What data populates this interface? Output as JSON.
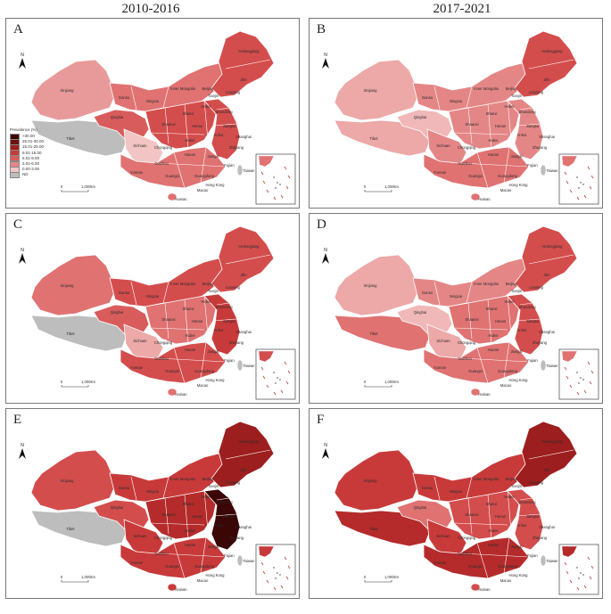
{
  "columns": [
    "2010-2016",
    "2017-2021"
  ],
  "north_label": "N",
  "scale_labels": [
    "0",
    "1,000km"
  ],
  "legend": {
    "title": "Prevalence (%)",
    "items": [
      {
        "label": ">30.00",
        "color": "#3b0606"
      },
      {
        "label": "25.01-30.00",
        "color": "#6e1111"
      },
      {
        "label": "15.01-25.00",
        "color": "#9d1e1e"
      },
      {
        "label": "9.01-15.00",
        "color": "#c83a3a"
      },
      {
        "label": "6.01-9.00",
        "color": "#d95c5c"
      },
      {
        "label": "3.01-6.00",
        "color": "#e58686"
      },
      {
        "label": "0.00-3.00",
        "color": "#f2c4c4"
      },
      {
        "label": "ND",
        "color": "#bdbdbd"
      }
    ]
  },
  "palette": {
    "border": "#ffffff",
    "outline": "#999999",
    "nd": "#bdbdbd",
    "light": "#f2c4c4"
  },
  "maps": [
    {
      "label": "A",
      "period": "2010-2016",
      "show_legend": true,
      "xinjiang": "#e89a9a",
      "tibet": "#bdbdbd",
      "qinghai": "#d95c5c",
      "north": "#e07272",
      "northeast": "#d44d4d",
      "central": "#d44d4d",
      "sichuan": "#f2c4c4",
      "south": "#e07272",
      "east": "#d44d4d",
      "islands": "#e07272",
      "labels": [
        "Heilongjiang",
        "Xinjiang",
        "Jilin",
        "Liaoning",
        "Beijing",
        "Tianjin",
        "Inner Mongolia",
        "Gansu",
        "Ningxia",
        "Hebei",
        "Shandong",
        "Qinghai",
        "Shanxi",
        "Shaanxi",
        "Henan",
        "Jiangsu",
        "Shanghai",
        "Anhui",
        "Tibet",
        "Sichuan",
        "Hubei",
        "Chongqing",
        "Zhejiang",
        "Hunan",
        "Jiangxi",
        "Guizhou",
        "Fujian",
        "Yunnan",
        "Guangxi",
        "Guangdong",
        "Taiwan",
        "Hong Kong",
        "Macao",
        "Hainan"
      ]
    },
    {
      "label": "B",
      "period": "2017-2021",
      "show_legend": false,
      "xinjiang": "#eda8a8",
      "tibet": "#eda8a8",
      "qinghai": "#f0b8b8",
      "north": "#e58686",
      "northeast": "#d44d4d",
      "central": "#e58686",
      "sichuan": "#e58686",
      "south": "#e07272",
      "east": "#e58686",
      "islands": "#e07272",
      "labels": [
        "Heilongjiang",
        "Xinjiang",
        "Jilin",
        "Liaoning",
        "Beijing",
        "Tianjin",
        "Inner Mongolia",
        "Gansu",
        "Ningxia",
        "Hebei",
        "Shandong",
        "Qinghai",
        "Shanxi",
        "Shaanxi",
        "Henan",
        "Jiangsu",
        "Shanghai",
        "Anhui",
        "Tibet",
        "Sichuan",
        "Hubei",
        "Chongqing",
        "Zhejiang",
        "Hunan",
        "Jiangxi",
        "Guizhou",
        "Fujian",
        "Yunnan",
        "Guangxi",
        "Guangdong",
        "Taiwan",
        "Hong Kong",
        "Macao",
        "Hainan"
      ]
    },
    {
      "label": "C",
      "period": "2010-2016",
      "show_legend": false,
      "xinjiang": "#e07272",
      "tibet": "#bdbdbd",
      "qinghai": "#d95c5c",
      "north": "#d44d4d",
      "northeast": "#d44d4d",
      "central": "#e07272",
      "sichuan": "#eda8a8",
      "south": "#d44d4d",
      "east": "#c83a3a",
      "islands": "#e07272",
      "labels": [
        "Heilongjiang",
        "Xinjiang",
        "Jilin",
        "Liaoning",
        "Beijing",
        "Tianjin",
        "Inner Mongolia",
        "Gansu",
        "Ningxia",
        "Hebei",
        "Shandong",
        "Qinghai",
        "Shanxi",
        "Shaanxi",
        "Henan",
        "Jiangsu",
        "Shanghai",
        "Anhui",
        "Tibet",
        "Sichuan",
        "Hubei",
        "Chongqing",
        "Zhejiang",
        "Hunan",
        "Jiangxi",
        "Guizhou",
        "Fujian",
        "Yunnan",
        "Guangxi",
        "Guangdong",
        "Taiwan",
        "Hong Kong",
        "Macao",
        "Hainan"
      ]
    },
    {
      "label": "D",
      "period": "2017-2021",
      "show_legend": false,
      "xinjiang": "#eda8a8",
      "tibet": "#e07272",
      "qinghai": "#f0b8b8",
      "north": "#e58686",
      "northeast": "#d44d4d",
      "central": "#e07272",
      "sichuan": "#eda8a8",
      "south": "#e07272",
      "east": "#d44d4d",
      "islands": "#e07272",
      "labels": [
        "Heilongjiang",
        "Xinjiang",
        "Jilin",
        "Liaoning",
        "Beijing",
        "Tianjin",
        "Inner Mongolia",
        "Gansu",
        "Ningxia",
        "Hebei",
        "Shandong",
        "Qinghai",
        "Shanxi",
        "Shaanxi",
        "Henan",
        "Jiangsu",
        "Shanghai",
        "Anhui",
        "Tibet",
        "Sichuan",
        "Hubei",
        "Chongqing",
        "Zhejiang",
        "Hunan",
        "Jiangxi",
        "Guizhou",
        "Fujian",
        "Yunnan",
        "Guangxi",
        "Guangdong",
        "Taiwan",
        "Hong Kong",
        "Macao",
        "Hainan"
      ]
    },
    {
      "label": "E",
      "period": "2010-2016",
      "show_legend": false,
      "xinjiang": "#d44d4d",
      "tibet": "#bdbdbd",
      "qinghai": "#d44d4d",
      "north": "#c83a3a",
      "northeast": "#9d1e1e",
      "central": "#b52b2b",
      "sichuan": "#c83a3a",
      "south": "#c83a3a",
      "east": "#3b0606",
      "islands": "#c83a3a",
      "labels": [
        "Heilongjiang",
        "Xinjiang",
        "Jilin",
        "Liaoning",
        "Beijing",
        "Tianjin",
        "Inner Mongolia",
        "Gansu",
        "Ningxia",
        "Hebei",
        "Shandong",
        "Qinghai",
        "Shanxi",
        "Shaanxi",
        "Henan",
        "Jiangsu",
        "Shanghai",
        "Anhui",
        "Tibet",
        "Sichuan",
        "Hubei",
        "Chongqing",
        "Zhejiang",
        "Hunan",
        "Jiangxi",
        "Guizhou",
        "Fujian",
        "Yunnan",
        "Guangxi",
        "Guangdong",
        "Taiwan",
        "Hong Kong",
        "Macao",
        "Hainan"
      ]
    },
    {
      "label": "F",
      "period": "2017-2021",
      "show_legend": false,
      "xinjiang": "#c83a3a",
      "tibet": "#b52b2b",
      "qinghai": "#e07272",
      "north": "#c83a3a",
      "northeast": "#9d1e1e",
      "central": "#d44d4d",
      "sichuan": "#c83a3a",
      "south": "#b52b2b",
      "east": "#d44d4d",
      "islands": "#d44d4d",
      "labels": [
        "Heilongjiang",
        "Xinjiang",
        "Jilin",
        "Liaoning",
        "Beijing",
        "Tianjin",
        "Inner Mongolia",
        "Gansu",
        "Ningxia",
        "Hebei",
        "Shandong",
        "Qinghai",
        "Shanxi",
        "Shaanxi",
        "Henan",
        "Jiangsu",
        "Shanghai",
        "Anhui",
        "Tibet",
        "Sichuan",
        "Hubei",
        "Chongqing",
        "Zhejiang",
        "Hunan",
        "Jiangxi",
        "Guizhou",
        "Fujian",
        "Yunnan",
        "Guangxi",
        "Guangdong",
        "Taiwan",
        "Hong Kong",
        "Macao",
        "Hainan"
      ]
    }
  ]
}
